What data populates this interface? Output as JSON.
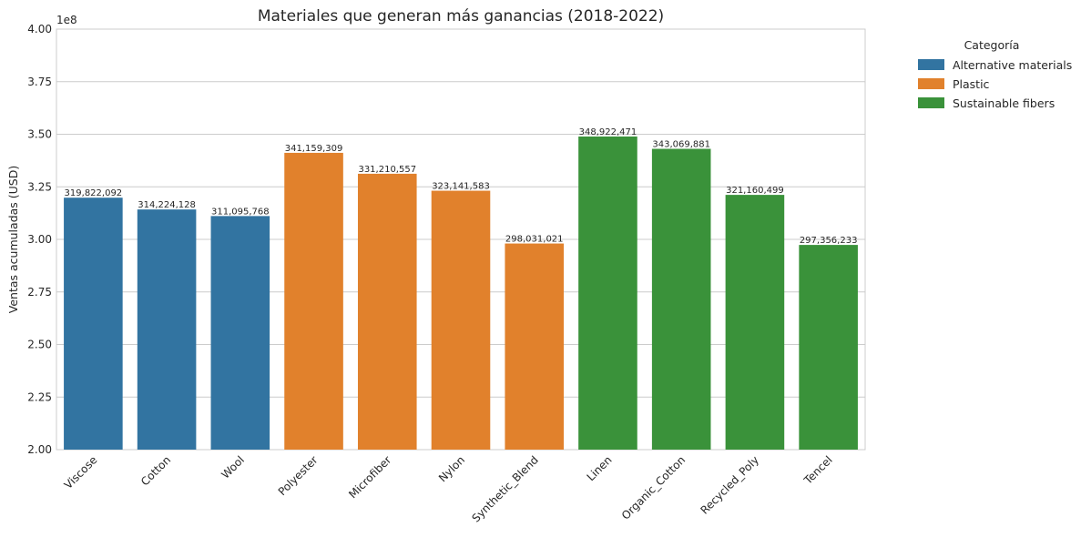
{
  "chart_data": {
    "type": "bar",
    "title": "Materiales que generan más ganancias (2018-2022)",
    "xlabel": "",
    "ylabel": "Ventas acumuladas (USD)",
    "y_offset_label": "1e8",
    "ylim": [
      200000000,
      400000000
    ],
    "yticks": [
      200000000,
      225000000,
      250000000,
      275000000,
      300000000,
      325000000,
      350000000,
      375000000,
      400000000
    ],
    "ytick_labels": [
      "2.00",
      "2.25",
      "2.50",
      "2.75",
      "3.00",
      "3.25",
      "3.50",
      "3.75",
      "4.00"
    ],
    "grid": true,
    "legend": {
      "title": "Categoría",
      "placement": "outside-top-right",
      "entries": [
        {
          "name": "Alternative materials",
          "color": "#3274a1"
        },
        {
          "name": "Plastic",
          "color": "#e1812c"
        },
        {
          "name": "Sustainable fibers",
          "color": "#3a923a"
        }
      ]
    },
    "categories": [
      "Viscose",
      "Cotton",
      "Wool",
      "Polyester",
      "Microfiber",
      "Nylon",
      "Synthetic_Blend",
      "Linen",
      "Organic_Cotton",
      "Recycled_Poly",
      "Tencel"
    ],
    "values": [
      319822092,
      314224128,
      311095768,
      341159309,
      331210557,
      323141583,
      298031021,
      348922471,
      343069881,
      321160499,
      297356233
    ],
    "value_labels": [
      "319,822,092",
      "314,224,128",
      "311,095,768",
      "341,159,309",
      "331,210,557",
      "323,141,583",
      "298,031,021",
      "348,922,471",
      "343,069,881",
      "321,160,499",
      "297,356,233"
    ],
    "bar_category": [
      "Alternative materials",
      "Alternative materials",
      "Alternative materials",
      "Plastic",
      "Plastic",
      "Plastic",
      "Plastic",
      "Sustainable fibers",
      "Sustainable fibers",
      "Sustainable fibers",
      "Sustainable fibers"
    ]
  }
}
